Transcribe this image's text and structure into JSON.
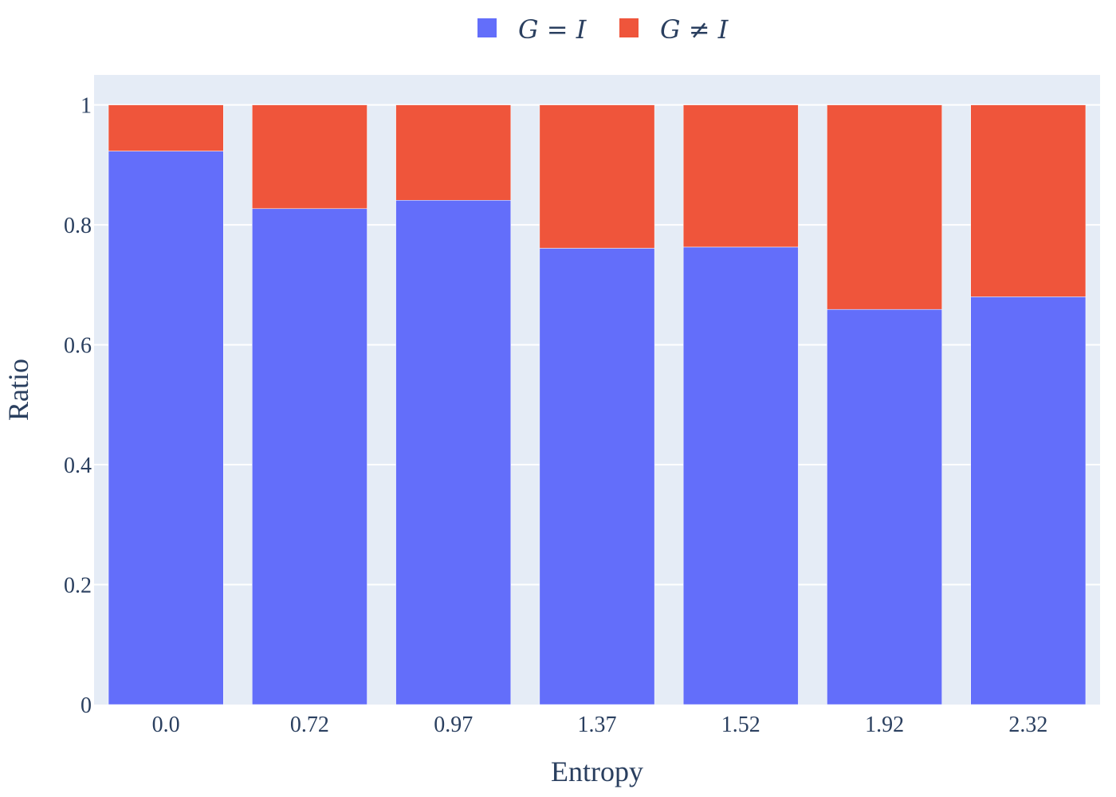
{
  "chart_data": {
    "type": "bar",
    "stacked": true,
    "categories": [
      "0.0",
      "0.72",
      "0.97",
      "1.37",
      "1.52",
      "1.92",
      "2.32"
    ],
    "series": [
      {
        "name": "G = I",
        "color": "#636efa",
        "values": [
          0.923,
          0.827,
          0.841,
          0.761,
          0.763,
          0.659,
          0.68
        ]
      },
      {
        "name": "G ≠ I",
        "color": "#ef553b",
        "values": [
          0.077,
          0.173,
          0.159,
          0.239,
          0.237,
          0.341,
          0.32
        ]
      }
    ],
    "xlabel": "Entropy",
    "ylabel": "Ratio",
    "ylim": [
      0,
      1.05
    ],
    "yticks": [
      0,
      0.2,
      0.4,
      0.6,
      0.8,
      1
    ],
    "ytick_labels": [
      "0",
      "0.2",
      "0.4",
      "0.6",
      "0.8",
      "1"
    ],
    "grid": true,
    "plot_background": "#e5ecf6",
    "legend_position": "top-center"
  }
}
